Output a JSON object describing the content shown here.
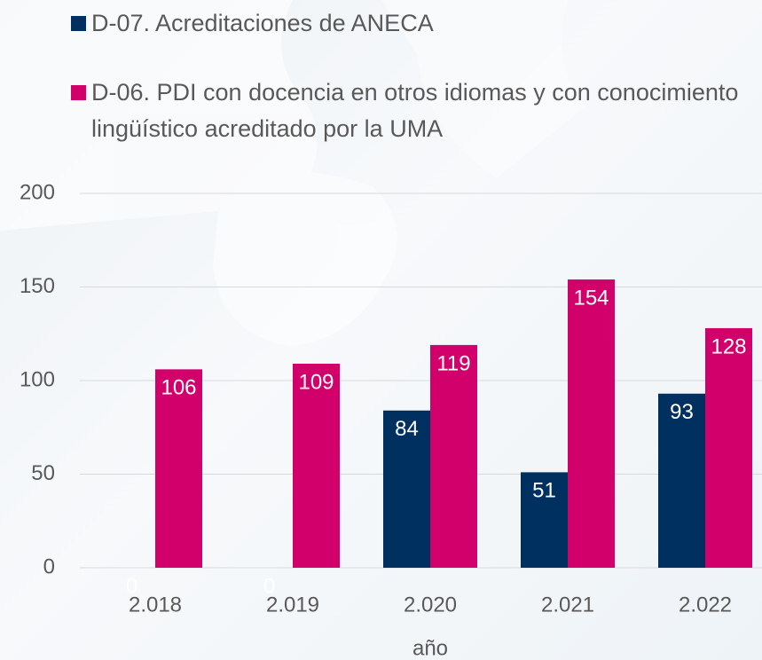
{
  "chart_data": {
    "type": "bar",
    "categories": [
      "2.018",
      "2.019",
      "2.020",
      "2.021",
      "2.022"
    ],
    "series": [
      {
        "name": "D-07. Acreditaciones de ANECA",
        "color": "#00305f",
        "values": [
          0,
          0,
          84,
          51,
          93
        ]
      },
      {
        "name": "D-06. PDI con docencia en otros idiomas y con conocimiento lingüístico acreditado por la UMA",
        "color": "#d1006a",
        "values": [
          106,
          109,
          119,
          154,
          128
        ]
      }
    ],
    "x_label": "año",
    "ylim": [
      0,
      200
    ],
    "yticks": [
      0,
      50,
      100,
      150,
      200
    ],
    "grid": true,
    "legend": "top"
  }
}
